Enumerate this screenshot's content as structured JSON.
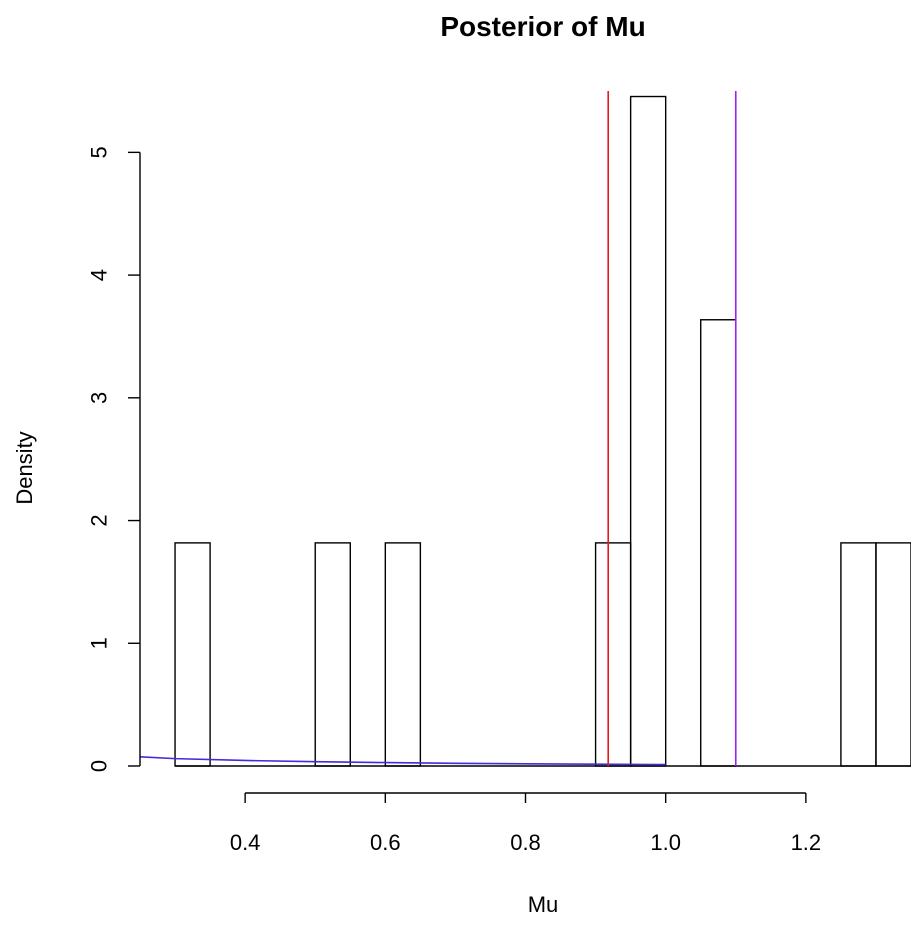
{
  "chart_data": {
    "type": "bar",
    "title": "Posterior of Mu",
    "xlabel": "Mu",
    "ylabel": "Density",
    "xlim": [
      0.25,
      1.35
    ],
    "ylim": [
      0,
      5.5
    ],
    "x_ticks": [
      0.4,
      0.6,
      0.8,
      1.0,
      1.2
    ],
    "x_tick_labels": [
      "0.4",
      "0.6",
      "0.8",
      "1.0",
      "1.2"
    ],
    "y_ticks": [
      0,
      1,
      2,
      3,
      4,
      5
    ],
    "y_tick_labels": [
      "0",
      "1",
      "2",
      "3",
      "4",
      "5"
    ],
    "bins": [
      {
        "left": 0.3,
        "right": 0.35,
        "density": 1.818
      },
      {
        "left": 0.5,
        "right": 0.55,
        "density": 1.818
      },
      {
        "left": 0.6,
        "right": 0.65,
        "density": 1.818
      },
      {
        "left": 0.9,
        "right": 0.95,
        "density": 1.818
      },
      {
        "left": 0.95,
        "right": 1.0,
        "density": 5.455
      },
      {
        "left": 1.05,
        "right": 1.1,
        "density": 3.636
      },
      {
        "left": 1.25,
        "right": 1.3,
        "density": 1.818
      },
      {
        "left": 1.3,
        "right": 1.35,
        "density": 1.818
      }
    ],
    "baseline_range": [
      0.3,
      1.35
    ],
    "vertical_lines": [
      {
        "x": 0.918,
        "color": "#e41a1c"
      },
      {
        "x": 1.1,
        "color": "#a020f0"
      }
    ],
    "density_curve": {
      "color": "#3f2be0",
      "x": [
        0.25,
        0.3,
        0.4,
        0.5,
        0.6,
        0.7,
        0.8,
        0.9,
        1.0
      ],
      "y": [
        0.075,
        0.06,
        0.045,
        0.035,
        0.028,
        0.022,
        0.018,
        0.015,
        0.012
      ]
    },
    "grid": false,
    "legend": "none"
  }
}
